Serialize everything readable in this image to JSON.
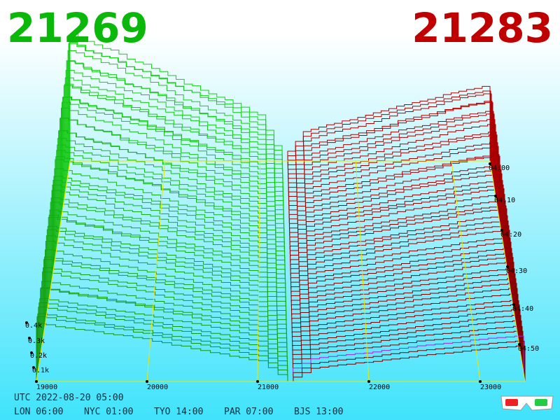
{
  "bid_price": "21269",
  "ask_price": "21283",
  "price_axis": [
    "19000",
    "20000",
    "21000",
    "22000",
    "23000"
  ],
  "depth_axis": [
    "0.1k",
    "0.2k",
    "0.3k",
    "0.4k"
  ],
  "time_axis": [
    "04:00",
    "04:10",
    "04:20",
    "04:30",
    "04:40",
    "04:50"
  ],
  "utc": "UTC 2022-08-20 05:00",
  "clocks": [
    "LON 06:00",
    "NYC 01:00",
    "TYO 14:00",
    "PAR 07:00",
    "BJS 13:00"
  ]
}
